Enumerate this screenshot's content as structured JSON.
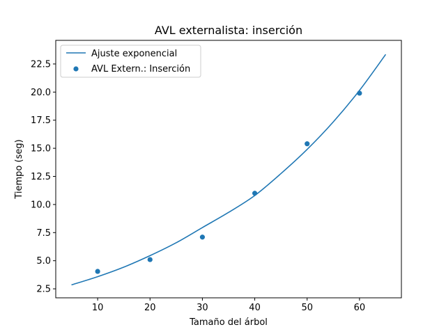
{
  "chart_data": {
    "type": "scatter",
    "title": "AVL externalista: inserción",
    "xlabel": "Tamaño del árbol",
    "ylabel": "Tiempo (seg)",
    "xlim": [
      2,
      68
    ],
    "ylim": [
      1.7,
      24.6
    ],
    "x_ticks": [
      10,
      20,
      30,
      40,
      50,
      60
    ],
    "x_tick_labels": [
      "10",
      "20",
      "30",
      "40",
      "50",
      "60"
    ],
    "y_ticks": [
      2.5,
      5.0,
      7.5,
      10.0,
      12.5,
      15.0,
      17.5,
      20.0,
      22.5
    ],
    "y_tick_labels": [
      "2.5",
      "5.0",
      "7.5",
      "10.0",
      "12.5",
      "15.0",
      "17.5",
      "20.0",
      "22.5"
    ],
    "grid": false,
    "legend_position": "upper-left",
    "series": [
      {
        "name": "Ajuste exponencial",
        "kind": "line",
        "color": "#1f77b4",
        "x": [
          5,
          10,
          15,
          20,
          25,
          30,
          35,
          40,
          45,
          50,
          55,
          60,
          65
        ],
        "y": [
          2.85,
          3.58,
          4.43,
          5.45,
          6.6,
          7.95,
          9.3,
          10.8,
          12.75,
          14.9,
          17.35,
          20.15,
          23.35
        ]
      },
      {
        "name": "AVL Extern.: Inserción",
        "kind": "scatter",
        "color": "#1f77b4",
        "x": [
          10,
          20,
          30,
          40,
          50,
          60
        ],
        "y": [
          4.05,
          5.1,
          7.1,
          11.0,
          15.4,
          19.9
        ]
      }
    ]
  }
}
